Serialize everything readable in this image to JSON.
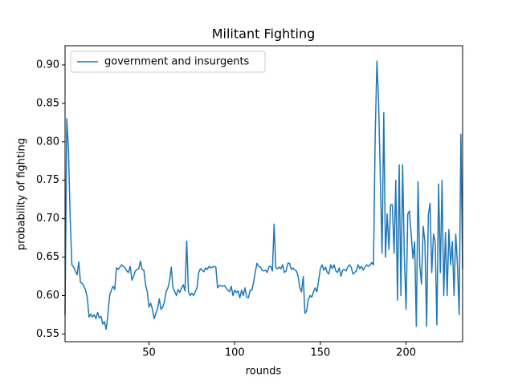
{
  "chart_data": {
    "type": "line",
    "title": "Militant Fighting",
    "xlabel": "rounds",
    "ylabel": "probability of fighting",
    "legend": "upper left",
    "xlim": [
      1,
      233
    ],
    "ylim": [
      0.54,
      0.925
    ],
    "xticks": [
      50,
      100,
      150,
      200
    ],
    "yticks": [
      0.55,
      {
        "value": 0.6,
        "label": "0.60"
      },
      0.65,
      {
        "value": 0.7,
        "label": "0.70"
      },
      0.75,
      {
        "value": 0.8,
        "label": "0.80"
      },
      0.85,
      {
        "value": 0.9,
        "label": "0.90"
      }
    ],
    "x": [
      1,
      2,
      3,
      4,
      5,
      6,
      7,
      8,
      9,
      10,
      11,
      12,
      13,
      14,
      15,
      16,
      17,
      18,
      19,
      20,
      21,
      22,
      23,
      24,
      25,
      26,
      27,
      28,
      29,
      30,
      31,
      32,
      33,
      34,
      35,
      36,
      37,
      38,
      39,
      40,
      41,
      42,
      43,
      44,
      45,
      46,
      47,
      48,
      49,
      50,
      51,
      52,
      53,
      54,
      55,
      56,
      57,
      58,
      59,
      60,
      61,
      62,
      63,
      64,
      65,
      66,
      67,
      68,
      69,
      70,
      71,
      72,
      73,
      74,
      75,
      76,
      77,
      78,
      79,
      80,
      81,
      82,
      83,
      84,
      85,
      86,
      87,
      88,
      89,
      90,
      91,
      92,
      93,
      94,
      95,
      96,
      97,
      98,
      99,
      100,
      101,
      102,
      103,
      104,
      105,
      106,
      107,
      108,
      109,
      110,
      111,
      112,
      113,
      114,
      115,
      116,
      117,
      118,
      119,
      120,
      121,
      122,
      123,
      124,
      125,
      126,
      127,
      128,
      129,
      130,
      131,
      132,
      133,
      134,
      135,
      136,
      137,
      138,
      139,
      140,
      141,
      142,
      143,
      144,
      145,
      146,
      147,
      148,
      149,
      150,
      151,
      152,
      153,
      154,
      155,
      156,
      157,
      158,
      159,
      160,
      161,
      162,
      163,
      164,
      165,
      166,
      167,
      168,
      169,
      170,
      171,
      172,
      173,
      174,
      175,
      176,
      177,
      178,
      179,
      180,
      181,
      182,
      183,
      184,
      185,
      186,
      187,
      188,
      189,
      190,
      191,
      192,
      193,
      194,
      195,
      196,
      197,
      198,
      199,
      200,
      201,
      202,
      203,
      204,
      205,
      206,
      207,
      208,
      209,
      210,
      211,
      212,
      213,
      214,
      215,
      216,
      217,
      218,
      219,
      220,
      221,
      222,
      223,
      224,
      225,
      226,
      227,
      228,
      229,
      230,
      231,
      232,
      233
    ],
    "series": [
      {
        "name": "government and insurgents",
        "color": "#1f77b4",
        "values": [
          0.575,
          0.83,
          0.79,
          0.7,
          0.64,
          0.637,
          0.632,
          0.627,
          0.644,
          0.617,
          0.616,
          0.612,
          0.607,
          0.597,
          0.572,
          0.576,
          0.572,
          0.575,
          0.57,
          0.578,
          0.571,
          0.573,
          0.563,
          0.566,
          0.556,
          0.575,
          0.6,
          0.607,
          0.612,
          0.608,
          0.636,
          0.634,
          0.637,
          0.64,
          0.638,
          0.636,
          0.632,
          0.63,
          0.638,
          0.62,
          0.625,
          0.632,
          0.634,
          0.635,
          0.645,
          0.634,
          0.633,
          0.614,
          0.605,
          0.585,
          0.59,
          0.582,
          0.57,
          0.577,
          0.583,
          0.596,
          0.582,
          0.585,
          0.592,
          0.605,
          0.61,
          0.619,
          0.637,
          0.61,
          0.605,
          0.6,
          0.608,
          0.604,
          0.61,
          0.614,
          0.606,
          0.671,
          0.605,
          0.6,
          0.603,
          0.6,
          0.605,
          0.61,
          0.63,
          0.635,
          0.633,
          0.631,
          0.636,
          0.634,
          0.638,
          0.636,
          0.637,
          0.638,
          0.637,
          0.61,
          0.613,
          0.613,
          0.612,
          0.613,
          0.61,
          0.607,
          0.605,
          0.612,
          0.6,
          0.607,
          0.604,
          0.606,
          0.597,
          0.607,
          0.6,
          0.61,
          0.598,
          0.597,
          0.607,
          0.607,
          0.617,
          0.63,
          0.642,
          0.638,
          0.637,
          0.633,
          0.632,
          0.633,
          0.63,
          0.638,
          0.638,
          0.632,
          0.693,
          0.636,
          0.635,
          0.637,
          0.635,
          0.64,
          0.63,
          0.632,
          0.642,
          0.642,
          0.634,
          0.636,
          0.633,
          0.632,
          0.625,
          0.61,
          0.605,
          0.625,
          0.577,
          0.58,
          0.595,
          0.6,
          0.598,
          0.605,
          0.61,
          0.605,
          0.62,
          0.635,
          0.64,
          0.633,
          0.637,
          0.63,
          0.628,
          0.64,
          0.635,
          0.64,
          0.632,
          0.63,
          0.636,
          0.625,
          0.633,
          0.634,
          0.632,
          0.637,
          0.64,
          0.637,
          0.628,
          0.63,
          0.632,
          0.64,
          0.635,
          0.638,
          0.633,
          0.637,
          0.64,
          0.638,
          0.64,
          0.643,
          0.64,
          0.81,
          0.905,
          0.85,
          0.75,
          0.655,
          0.838,
          0.65,
          0.706,
          0.66,
          0.718,
          0.718,
          0.655,
          0.75,
          0.594,
          0.77,
          0.6,
          0.77,
          0.65,
          0.582,
          0.706,
          0.71,
          0.68,
          0.648,
          0.67,
          0.56,
          0.748,
          0.64,
          0.615,
          0.69,
          0.67,
          0.56,
          0.705,
          0.72,
          0.63,
          0.68,
          0.67,
          0.562,
          0.745,
          0.63,
          0.75,
          0.6,
          0.682,
          0.6,
          0.686,
          0.64,
          0.67,
          0.6,
          0.68,
          0.64,
          0.575,
          0.81,
          0.635
        ]
      }
    ]
  }
}
